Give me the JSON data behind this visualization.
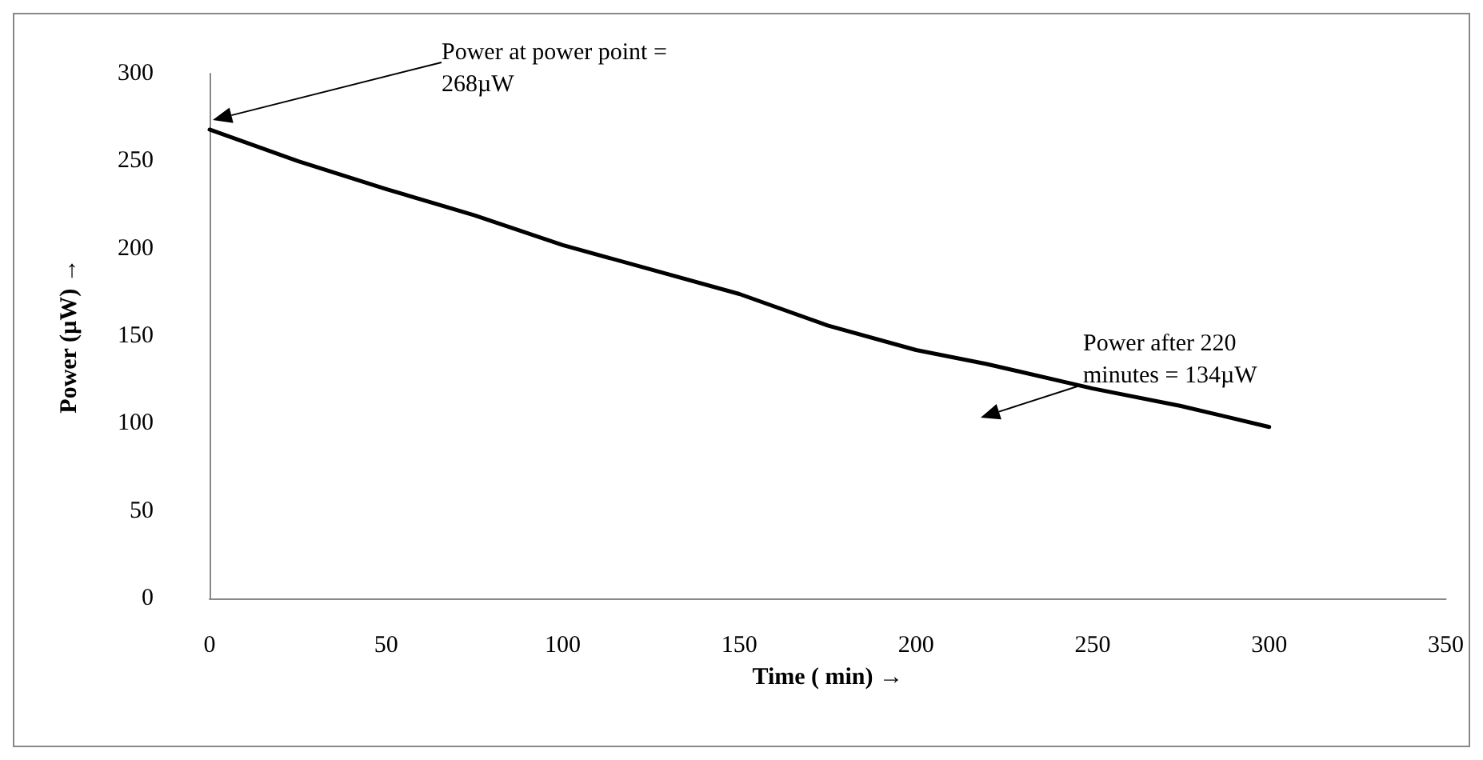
{
  "chart_data": {
    "type": "line",
    "xlabel": "Time ( min) →",
    "ylabel": "Power (µW) →",
    "x": [
      0,
      25,
      50,
      75,
      100,
      125,
      150,
      175,
      200,
      220,
      250,
      275,
      300
    ],
    "series": [
      {
        "color": "#000000",
        "values": [
          268,
          250,
          234,
          219,
          202,
          188,
          174,
          156,
          142,
          134,
          120,
          110,
          98
        ]
      }
    ],
    "xlim": [
      0,
      350
    ],
    "xticks": [
      0,
      50,
      100,
      150,
      200,
      250,
      300,
      350
    ],
    "ylim": [
      0,
      300
    ],
    "yticks": [
      0,
      50,
      100,
      150,
      200,
      250,
      300
    ],
    "grid": false,
    "marker": "none",
    "line_style": "solid",
    "annotations": [
      "Power at power point = 268µW",
      "Power after 220 minutes = 134µW"
    ]
  }
}
